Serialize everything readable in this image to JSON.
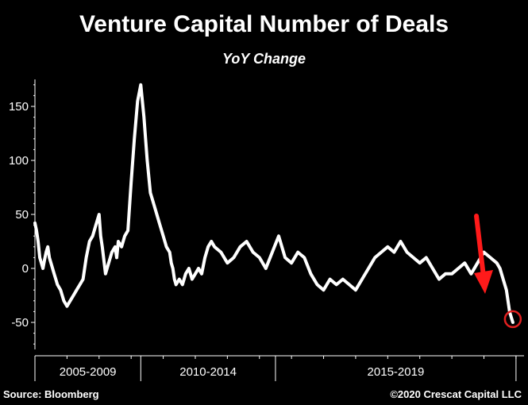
{
  "chart_data": {
    "type": "line",
    "title": "Venture Capital Number of Deals",
    "subtitle": "YoY Change",
    "ylim": [
      -75,
      175
    ],
    "yticks": [
      -50,
      0,
      50,
      100,
      150
    ],
    "ytick_labels": [
      "-50",
      "0",
      "50",
      "100",
      "150"
    ],
    "xlim": [
      2005,
      2020.25
    ],
    "period_labels": [
      "2005-2009",
      "2010-2014",
      "2015-2019"
    ],
    "period_bounds": [
      2005,
      2008.3,
      2012.5,
      2020
    ],
    "grid": false,
    "series": [
      {
        "x": [
          2005.0,
          2005.05,
          2005.1,
          2005.15,
          2005.2,
          2005.25,
          2005.3,
          2005.35,
          2005.4,
          2005.45,
          2005.5,
          2005.55,
          2005.6,
          2005.65,
          2005.7,
          2005.8,
          2005.9,
          2006.0,
          2006.1,
          2006.2,
          2006.3,
          2006.4,
          2006.5,
          2006.6,
          2006.7,
          2006.8,
          2006.9,
          2007.0,
          2007.05,
          2007.1,
          2007.2,
          2007.3,
          2007.4,
          2007.5,
          2007.55,
          2007.6,
          2007.7,
          2007.8,
          2007.9,
          2008.0,
          2008.1,
          2008.2,
          2008.3,
          2008.4,
          2008.5,
          2008.6,
          2008.7,
          2008.8,
          2008.9,
          2009.0,
          2009.1,
          2009.2,
          2009.25,
          2009.3,
          2009.35,
          2009.4,
          2009.5,
          2009.6,
          2009.7,
          2009.8,
          2009.9,
          2010.0,
          2010.1,
          2010.2,
          2010.3,
          2010.4,
          2010.5,
          2010.6,
          2010.8,
          2011.0,
          2011.2,
          2011.4,
          2011.6,
          2011.8,
          2012.0,
          2012.2,
          2012.4,
          2012.6,
          2012.8,
          2013.0,
          2013.2,
          2013.4,
          2013.6,
          2013.8,
          2014.0,
          2014.2,
          2014.4,
          2014.6,
          2014.8,
          2015.0,
          2015.2,
          2015.4,
          2015.6,
          2015.8,
          2016.0,
          2016.2,
          2016.4,
          2016.6,
          2016.8,
          2017.0,
          2017.2,
          2017.4,
          2017.6,
          2017.8,
          2018.0,
          2018.2,
          2018.4,
          2018.6,
          2018.8,
          2019.0,
          2019.2,
          2019.4,
          2019.5,
          2019.6,
          2019.7,
          2019.75,
          2019.8,
          2019.85,
          2019.9
        ],
        "values": [
          42,
          35,
          25,
          10,
          5,
          0,
          8,
          15,
          20,
          10,
          5,
          0,
          -5,
          -10,
          -15,
          -20,
          -30,
          -35,
          -30,
          -25,
          -20,
          -15,
          -10,
          10,
          25,
          30,
          40,
          50,
          30,
          20,
          -5,
          5,
          15,
          20,
          10,
          25,
          20,
          30,
          35,
          80,
          120,
          155,
          170,
          140,
          100,
          70,
          60,
          50,
          40,
          30,
          20,
          15,
          5,
          0,
          -10,
          -15,
          -10,
          -15,
          -5,
          0,
          -10,
          -5,
          0,
          -5,
          10,
          20,
          25,
          20,
          15,
          5,
          10,
          20,
          25,
          15,
          10,
          0,
          15,
          30,
          10,
          5,
          15,
          10,
          -5,
          -15,
          -20,
          -10,
          -15,
          -10,
          -15,
          -20,
          -10,
          0,
          10,
          15,
          20,
          15,
          25,
          15,
          10,
          5,
          10,
          0,
          -10,
          -5,
          -5,
          0,
          5,
          -5,
          5,
          15,
          10,
          5,
          0,
          -10,
          -20,
          -30,
          -40,
          -45,
          -50
        ]
      }
    ]
  },
  "annotation": {
    "marker_x": 2019.9,
    "marker_y": -47,
    "marker_color": "#e02020",
    "arrow_color": "#ff1a1a",
    "arrow": "down"
  },
  "footer": {
    "source": "Source: Bloomberg",
    "copyright": "©2020 Crescat Capital LLC"
  },
  "colors": {
    "background": "#000000",
    "line": "#ffffff",
    "axis": "#ffffff"
  }
}
